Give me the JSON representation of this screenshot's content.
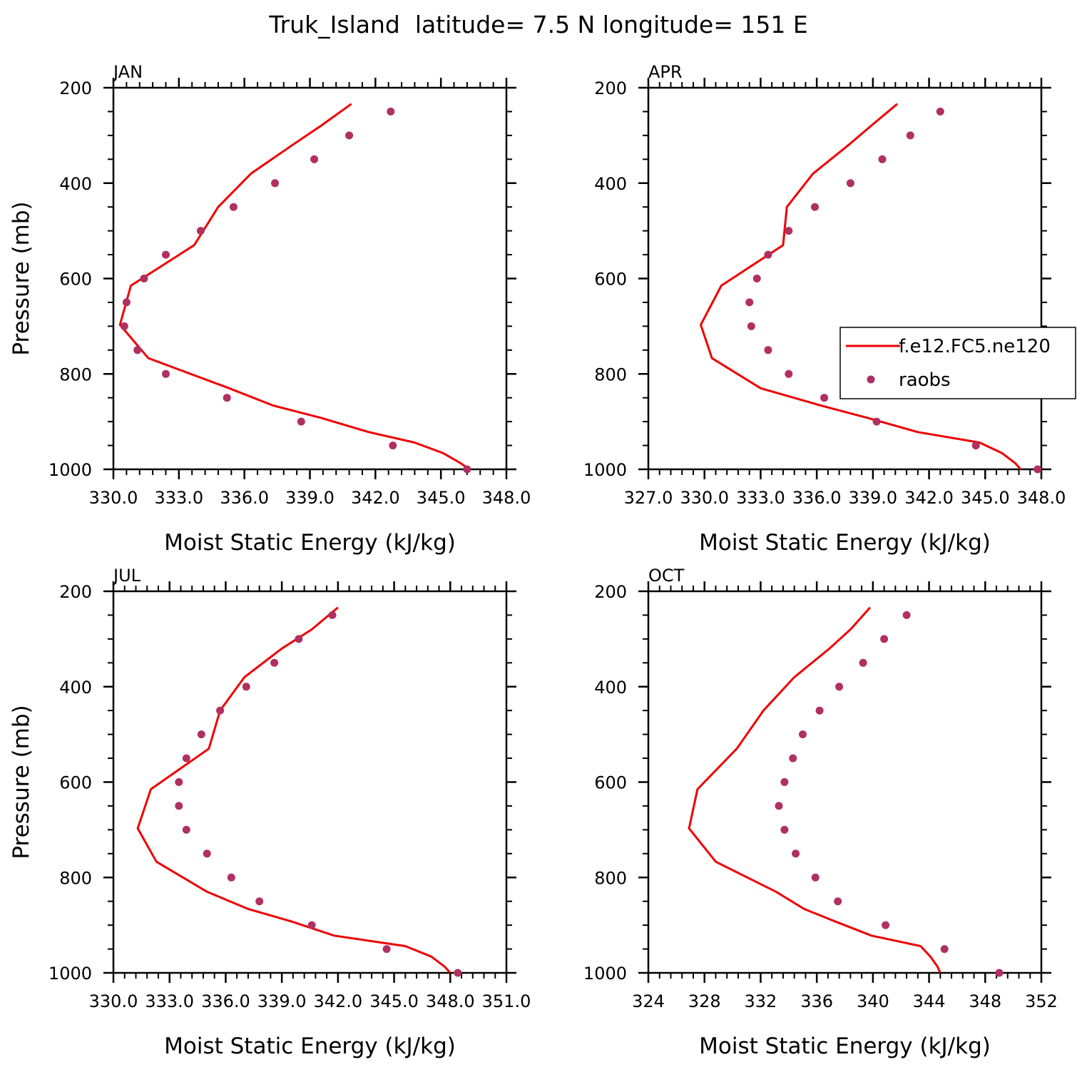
{
  "figure": {
    "title": "Truk_Island  latitude= 7.5 N longitude= 151 E"
  },
  "legend": {
    "model_label": "f.e12.FC5.ne120",
    "obs_label": "raobs"
  },
  "colors": {
    "model_line": "#ee0000",
    "obs_marker": "#b03060",
    "axes": "#000000"
  },
  "chart_data": [
    {
      "type": "line",
      "title": "JAN",
      "xlabel": "Moist Static Energy (kJ/kg)",
      "ylabel": "Pressure (mb)",
      "xlim": [
        330,
        348
      ],
      "ylim": [
        1000,
        200
      ],
      "x_ticks": [
        330,
        333,
        336,
        339,
        342,
        345,
        348
      ],
      "x_tick_labels": [
        "330.0",
        "333.0",
        "336.0",
        "339.0",
        "342.0",
        "345.0",
        "348.0"
      ],
      "y_ticks": [
        200,
        400,
        600,
        800,
        1000
      ],
      "y_tick_labels": [
        "200",
        "400",
        "600",
        "800",
        "1000"
      ],
      "series": [
        {
          "name": "f.e12.FC5.ne120",
          "kind": "line",
          "y": [
            1000,
            987,
            966,
            944,
            922,
            892,
            866,
            830,
            767,
            697,
            615,
            530,
            450,
            380,
            320,
            280,
            234
          ],
          "x": [
            346.3,
            345.9,
            345.1,
            343.8,
            341.7,
            339.5,
            337.3,
            335.3,
            331.6,
            330.3,
            330.8,
            333.7,
            334.8,
            336.3,
            338.2,
            339.5,
            340.9
          ]
        },
        {
          "name": "raobs",
          "kind": "scatter",
          "y": [
            250,
            300,
            350,
            400,
            450,
            500,
            550,
            600,
            650,
            700,
            750,
            800,
            850,
            900,
            950,
            1000
          ],
          "x": [
            342.7,
            340.8,
            339.2,
            337.4,
            335.5,
            334.0,
            332.4,
            331.4,
            330.6,
            330.5,
            331.1,
            332.4,
            335.2,
            338.6,
            342.8,
            346.2
          ]
        }
      ]
    },
    {
      "type": "line",
      "title": "APR",
      "xlabel": "Moist Static Energy (kJ/kg)",
      "ylabel": "",
      "xlim": [
        327,
        348
      ],
      "ylim": [
        1000,
        200
      ],
      "x_ticks": [
        327,
        330,
        333,
        336,
        339,
        342,
        345,
        348
      ],
      "x_tick_labels": [
        "327.0",
        "330.0",
        "333.0",
        "336.0",
        "339.0",
        "342.0",
        "345.0",
        "348.0"
      ],
      "y_ticks": [
        200,
        400,
        600,
        800,
        1000
      ],
      "y_tick_labels": [
        "200",
        "400",
        "600",
        "800",
        "1000"
      ],
      "legend": "right",
      "series": [
        {
          "name": "f.e12.FC5.ne120",
          "kind": "line",
          "y": [
            1000,
            987,
            966,
            944,
            922,
            892,
            866,
            830,
            767,
            697,
            615,
            530,
            450,
            380,
            320,
            280,
            234
          ],
          "x": [
            346.9,
            346.6,
            345.9,
            344.7,
            341.4,
            338.7,
            336.2,
            333.0,
            330.4,
            329.8,
            330.9,
            334.2,
            334.4,
            335.8,
            337.7,
            338.9,
            340.3
          ]
        },
        {
          "name": "raobs",
          "kind": "scatter",
          "y": [
            250,
            300,
            350,
            400,
            450,
            500,
            550,
            600,
            650,
            700,
            750,
            800,
            850,
            900,
            950,
            1000
          ],
          "x": [
            342.6,
            341.0,
            339.5,
            337.8,
            335.9,
            334.5,
            333.4,
            332.8,
            332.4,
            332.5,
            333.4,
            334.5,
            336.4,
            339.2,
            344.5,
            347.8
          ]
        }
      ]
    },
    {
      "type": "line",
      "title": "JUL",
      "xlabel": "Moist Static Energy (kJ/kg)",
      "ylabel": "Pressure (mb)",
      "xlim": [
        330,
        351
      ],
      "ylim": [
        1000,
        200
      ],
      "x_ticks": [
        330,
        333,
        336,
        339,
        342,
        345,
        348,
        351
      ],
      "x_tick_labels": [
        "330.0",
        "333.0",
        "336.0",
        "339.0",
        "342.0",
        "345.0",
        "348.0",
        "351.0"
      ],
      "y_ticks": [
        200,
        400,
        600,
        800,
        1000
      ],
      "y_tick_labels": [
        "200",
        "400",
        "600",
        "800",
        "1000"
      ],
      "series": [
        {
          "name": "f.e12.FC5.ne120",
          "kind": "line",
          "y": [
            1000,
            987,
            966,
            944,
            922,
            892,
            866,
            830,
            767,
            697,
            615,
            530,
            450,
            380,
            320,
            280,
            234
          ],
          "x": [
            348.0,
            347.7,
            347.0,
            345.6,
            341.8,
            339.5,
            337.2,
            335.0,
            332.3,
            331.3,
            332.0,
            335.1,
            335.7,
            337.0,
            339.0,
            340.6,
            342.0
          ]
        },
        {
          "name": "raobs",
          "kind": "scatter",
          "y": [
            250,
            300,
            350,
            400,
            450,
            500,
            550,
            600,
            650,
            700,
            750,
            800,
            850,
            900,
            950,
            1000
          ],
          "x": [
            341.7,
            339.9,
            338.6,
            337.1,
            335.7,
            334.7,
            333.9,
            333.5,
            333.5,
            333.9,
            335.0,
            336.3,
            337.8,
            340.6,
            344.6,
            348.4
          ]
        }
      ]
    },
    {
      "type": "line",
      "title": "OCT",
      "xlabel": "Moist Static Energy (kJ/kg)",
      "ylabel": "",
      "xlim": [
        324,
        352
      ],
      "ylim": [
        1000,
        200
      ],
      "x_ticks": [
        324,
        328,
        332,
        336,
        340,
        344,
        348,
        352
      ],
      "x_tick_labels": [
        "324",
        "328",
        "332",
        "336",
        "340",
        "344",
        "348",
        "352"
      ],
      "y_ticks": [
        200,
        400,
        600,
        800,
        1000
      ],
      "y_tick_labels": [
        "200",
        "400",
        "600",
        "800",
        "1000"
      ],
      "series": [
        {
          "name": "f.e12.FC5.ne120",
          "kind": "line",
          "y": [
            1000,
            987,
            966,
            944,
            922,
            892,
            866,
            830,
            767,
            697,
            615,
            530,
            450,
            380,
            320,
            280,
            234
          ],
          "x": [
            344.8,
            344.6,
            344.1,
            343.4,
            339.9,
            337.3,
            335.1,
            333.1,
            328.8,
            326.9,
            327.5,
            330.3,
            332.2,
            334.4,
            336.9,
            338.4,
            339.8
          ]
        },
        {
          "name": "raobs",
          "kind": "scatter",
          "y": [
            250,
            300,
            350,
            400,
            450,
            500,
            550,
            600,
            650,
            700,
            750,
            800,
            850,
            900,
            950,
            1000
          ],
          "x": [
            342.4,
            340.8,
            339.3,
            337.6,
            336.2,
            335.0,
            334.3,
            333.7,
            333.3,
            333.7,
            334.5,
            335.9,
            337.5,
            340.9,
            345.1,
            349.0
          ]
        }
      ]
    }
  ]
}
